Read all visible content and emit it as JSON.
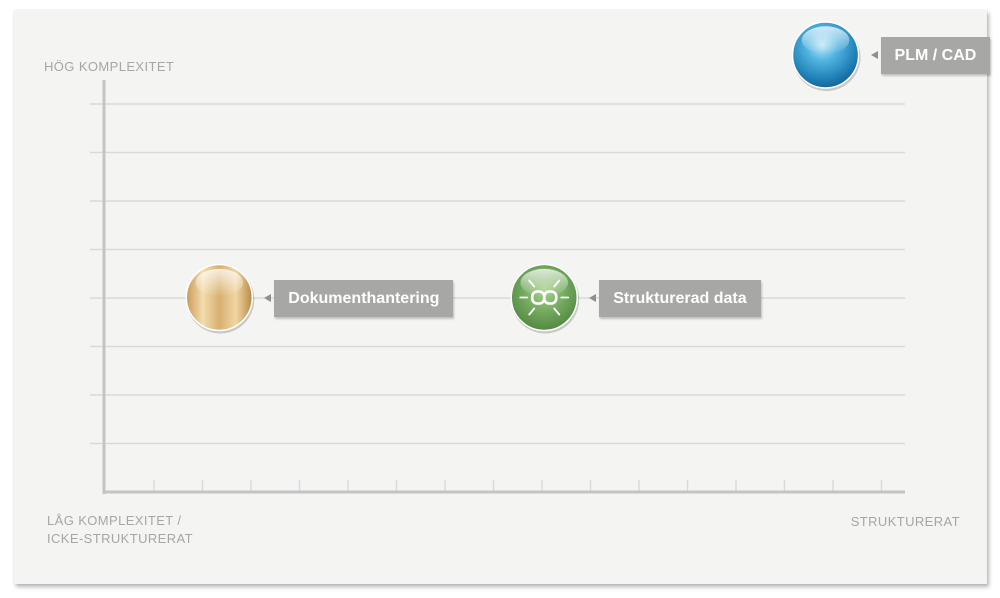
{
  "axes": {
    "y_high_label": "HÖG KOMPLEXITET",
    "x_low_label_lines": [
      "LÅG KOMPLEXITET /",
      "ICKE-STRUKTURERAT"
    ],
    "x_high_label": "STRUKTURERAT"
  },
  "items": [
    {
      "label": "PLM / CAD",
      "color": "#3aa0d3",
      "icon": "blue-sphere-icon",
      "x": 14.3,
      "y": 8
    },
    {
      "label": "Dokumenthantering",
      "color": "#d9b77a",
      "icon": "gold-sphere-icon",
      "x": 1.8,
      "y": 3
    },
    {
      "label": "Strukturerad data",
      "color": "#6ea55a",
      "icon": "link-icon",
      "x": 8.5,
      "y": 3
    }
  ],
  "colors": {
    "card_bg": "#f4f4f3",
    "grid": "#d9d9d9",
    "axis": "#c4c4c4",
    "tag_bg": "#a7a7a6",
    "axis_text": "#a6a6a6"
  }
}
